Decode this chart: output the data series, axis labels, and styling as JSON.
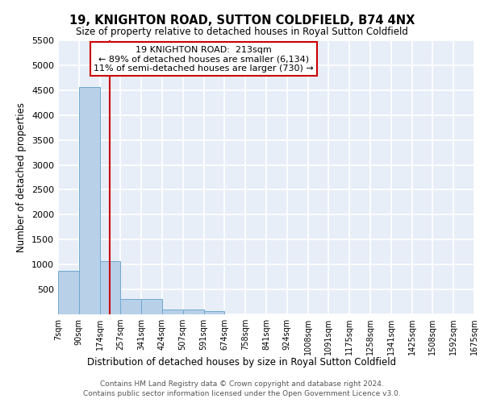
{
  "title": "19, KNIGHTON ROAD, SUTTON COLDFIELD, B74 4NX",
  "subtitle": "Size of property relative to detached houses in Royal Sutton Coldfield",
  "xlabel": "Distribution of detached houses by size in Royal Sutton Coldfield",
  "ylabel": "Number of detached properties",
  "footer_line1": "Contains HM Land Registry data © Crown copyright and database right 2024.",
  "footer_line2": "Contains public sector information licensed under the Open Government Licence v3.0.",
  "bar_edges": [
    7,
    90,
    174,
    257,
    341,
    424,
    507,
    591,
    674,
    758,
    841,
    924,
    1008,
    1091,
    1175,
    1258,
    1341,
    1425,
    1508,
    1592,
    1675
  ],
  "bar_values": [
    880,
    4560,
    1060,
    300,
    300,
    100,
    100,
    60,
    0,
    0,
    0,
    0,
    0,
    0,
    0,
    0,
    0,
    0,
    0,
    0
  ],
  "bar_color": "#b8d0e8",
  "bar_edge_color": "#6fa8d0",
  "bg_color": "#e8eef8",
  "grid_color": "#ffffff",
  "property_line_x": 213,
  "property_line_color": "#cc0000",
  "annotation_line1": "19 KNIGHTON ROAD:  213sqm",
  "annotation_line2": "← 89% of detached houses are smaller (6,134)",
  "annotation_line3": "11% of semi-detached houses are larger (730) →",
  "annotation_box_color": "#cc0000",
  "ylim": [
    0,
    5500
  ],
  "yticks": [
    0,
    500,
    1000,
    1500,
    2000,
    2500,
    3000,
    3500,
    4000,
    4500,
    5000,
    5500
  ],
  "tick_labels": [
    "7sqm",
    "90sqm",
    "174sqm",
    "257sqm",
    "341sqm",
    "424sqm",
    "507sqm",
    "591sqm",
    "674sqm",
    "758sqm",
    "841sqm",
    "924sqm",
    "1008sqm",
    "1091sqm",
    "1175sqm",
    "1258sqm",
    "1341sqm",
    "1425sqm",
    "1508sqm",
    "1592sqm",
    "1675sqm"
  ]
}
